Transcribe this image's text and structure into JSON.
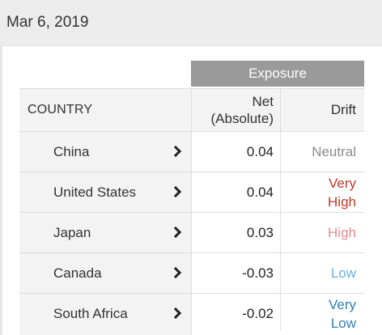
{
  "date": "Mar 6, 2019",
  "table": {
    "group_header": "Exposure",
    "headers": {
      "country": "COUNTRY",
      "net": "Net\n(Absolute)",
      "drift": "Drift"
    },
    "rows": [
      {
        "country": "China",
        "net": "0.04",
        "drift": "Neutral",
        "drift_color": "#8a8a8a"
      },
      {
        "country": "United States",
        "net": "0.04",
        "drift": "Very\nHigh",
        "drift_color": "#c0392b"
      },
      {
        "country": "Japan",
        "net": "0.03",
        "drift": "High",
        "drift_color": "#e8888f"
      },
      {
        "country": "Canada",
        "net": "-0.03",
        "drift": "Low",
        "drift_color": "#6ab0dc"
      },
      {
        "country": "South Africa",
        "net": "-0.02",
        "drift": "Very\nLow",
        "drift_color": "#2f7fb5"
      }
    ],
    "chevron_icon": "chevron-right-icon"
  }
}
